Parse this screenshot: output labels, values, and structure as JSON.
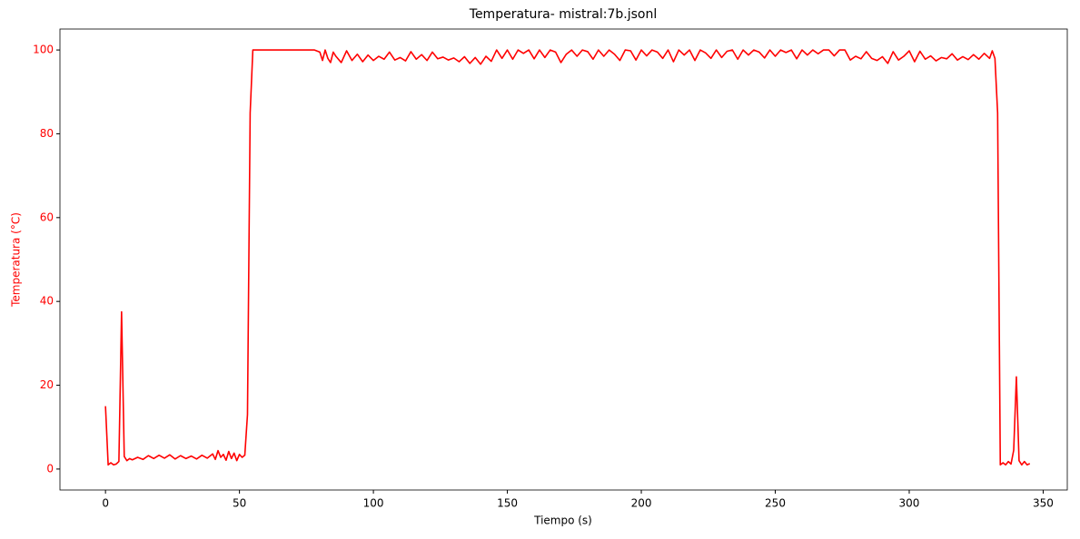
{
  "chart_data": {
    "type": "line",
    "title": "Temperatura- mistral:7b.jsonl",
    "xlabel": "Tiempo (s)",
    "ylabel": "Temperatura (°C)",
    "ylabel_color": "#ff0000",
    "x": [
      0,
      1,
      2,
      3,
      4,
      5,
      6,
      7,
      8,
      9,
      10,
      12,
      14,
      16,
      18,
      20,
      22,
      24,
      26,
      28,
      30,
      32,
      34,
      36,
      38,
      40,
      41,
      42,
      43,
      44,
      45,
      46,
      47,
      48,
      49,
      50,
      51,
      52,
      53,
      54,
      55,
      60,
      65,
      70,
      75,
      78,
      80,
      81,
      82,
      83,
      84,
      85,
      86,
      88,
      90,
      92,
      94,
      96,
      98,
      100,
      102,
      104,
      106,
      108,
      110,
      112,
      114,
      116,
      118,
      120,
      122,
      124,
      126,
      128,
      130,
      132,
      134,
      136,
      138,
      140,
      142,
      144,
      146,
      148,
      150,
      152,
      154,
      156,
      158,
      160,
      162,
      164,
      166,
      168,
      170,
      172,
      174,
      176,
      178,
      180,
      182,
      184,
      186,
      188,
      190,
      192,
      194,
      196,
      198,
      200,
      202,
      204,
      206,
      208,
      210,
      212,
      214,
      216,
      218,
      220,
      222,
      224,
      226,
      228,
      230,
      232,
      234,
      236,
      238,
      240,
      242,
      244,
      246,
      248,
      250,
      252,
      254,
      256,
      258,
      260,
      262,
      264,
      266,
      268,
      270,
      272,
      274,
      276,
      278,
      280,
      282,
      284,
      286,
      288,
      290,
      292,
      294,
      296,
      298,
      300,
      302,
      304,
      306,
      308,
      310,
      312,
      314,
      316,
      318,
      320,
      322,
      324,
      326,
      328,
      330,
      331,
      332,
      333,
      334,
      335,
      336,
      337,
      338,
      339,
      340,
      341,
      342,
      343,
      344,
      345
    ],
    "series": [
      {
        "color": "#ff0000",
        "values": [
          15,
          1,
          1.5,
          1,
          1.2,
          1.8,
          37.5,
          3,
          2,
          2.5,
          2.2,
          2.8,
          2.3,
          3.2,
          2.5,
          3.3,
          2.6,
          3.4,
          2.4,
          3.2,
          2.5,
          3.1,
          2.4,
          3.3,
          2.6,
          3.6,
          2.3,
          4.4,
          2.8,
          3.5,
          2.1,
          4.2,
          2.5,
          3.8,
          2,
          3.5,
          2.8,
          3.3,
          13,
          85,
          100,
          100,
          100,
          100,
          100,
          100,
          99.5,
          97.5,
          100,
          98,
          97,
          99.5,
          98.5,
          97,
          99.8,
          97.5,
          99,
          97.2,
          98.8,
          97.5,
          98.5,
          97.8,
          99.5,
          97.6,
          98.2,
          97.4,
          99.6,
          97.8,
          98.9,
          97.5,
          99.5,
          97.9,
          98.3,
          97.6,
          98.1,
          97.2,
          98.4,
          96.8,
          98.2,
          96.6,
          98.5,
          97.3,
          100,
          98,
          100,
          97.8,
          100,
          99.2,
          100,
          97.9,
          100,
          98.2,
          100,
          99.5,
          97,
          99,
          100,
          98.5,
          100,
          99.6,
          97.8,
          100,
          98.5,
          100,
          99,
          97.5,
          100,
          99.8,
          97.6,
          100,
          98.6,
          100,
          99.5,
          98,
          100,
          97.2,
          100,
          98.8,
          100,
          97.5,
          100,
          99.3,
          98,
          100,
          98.2,
          99.7,
          100,
          97.8,
          100,
          98.8,
          100,
          99.5,
          98.1,
          100,
          98.5,
          100,
          99.4,
          100,
          97.9,
          100,
          98.8,
          100,
          99.1,
          100,
          100,
          98.6,
          100,
          100,
          97.6,
          98.5,
          97.9,
          99.6,
          98,
          97.5,
          98.4,
          96.8,
          99.6,
          97.6,
          98.5,
          99.8,
          97.2,
          99.7,
          97.8,
          98.6,
          97.4,
          98.2,
          97.9,
          99.1,
          97.6,
          98.4,
          97.7,
          98.9,
          97.8,
          99.2,
          98,
          99.8,
          98,
          85,
          1,
          1.5,
          1,
          1.8,
          1.2,
          4.5,
          22,
          2,
          1,
          1.8,
          1,
          1.3
        ]
      }
    ],
    "xlim": [
      -17,
      359
    ],
    "ylim": [
      -5,
      105
    ],
    "xticks": [
      0,
      50,
      100,
      150,
      200,
      250,
      300,
      350
    ],
    "yticks": [
      0,
      20,
      40,
      60,
      80,
      100
    ],
    "ytick_color": "#ff0000",
    "grid": false
  }
}
